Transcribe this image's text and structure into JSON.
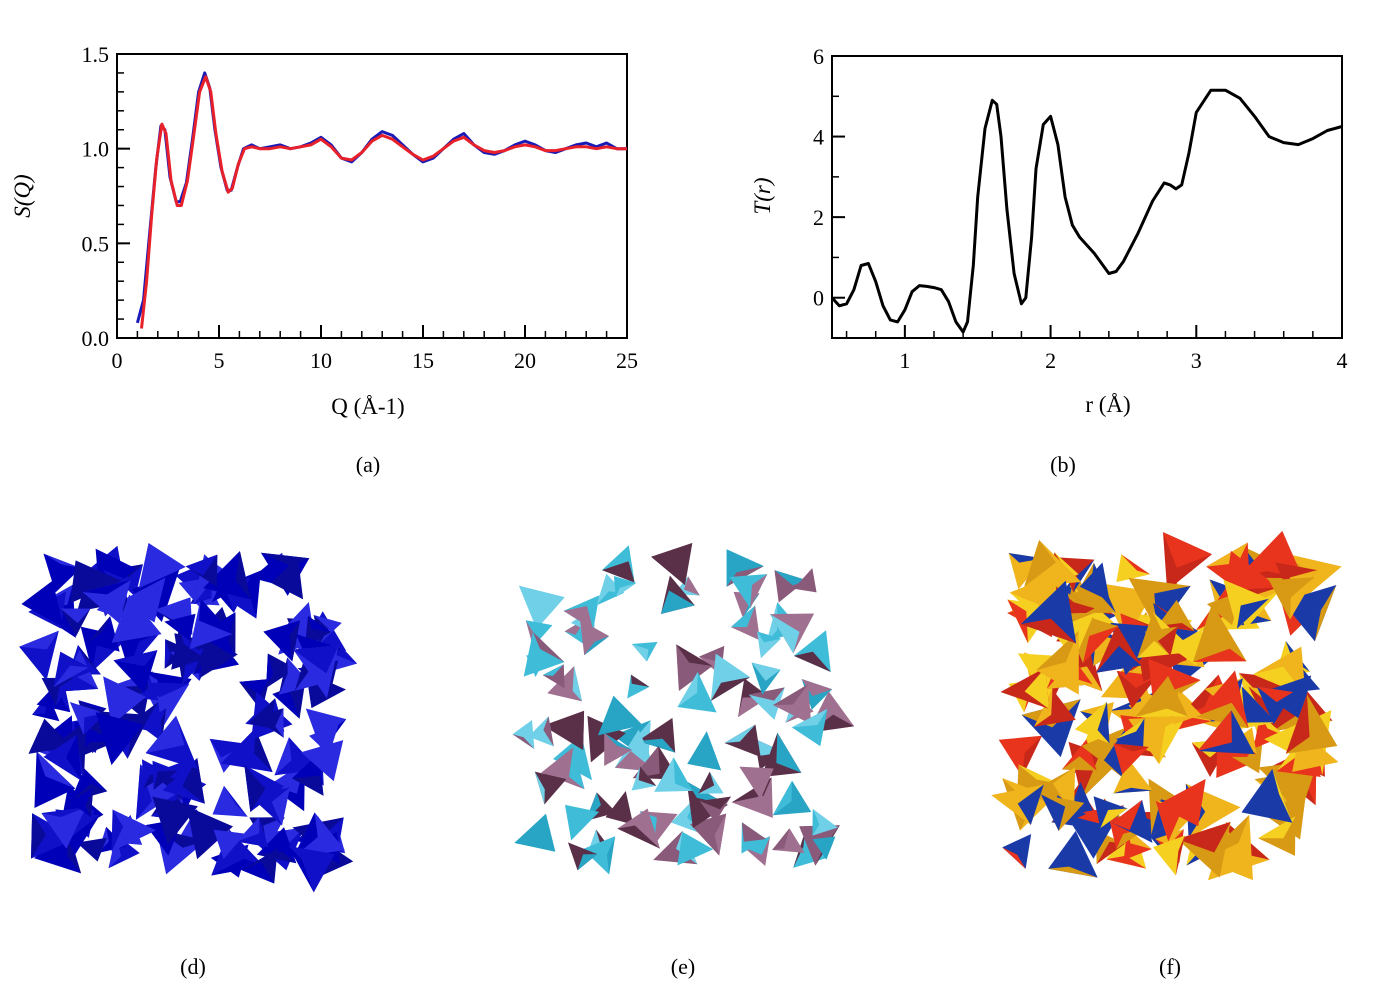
{
  "chart_data": [
    {
      "type": "line",
      "panel": "(a)",
      "xlabel": "Q (Å-1)",
      "ylabel": "S(Q)",
      "xlim": [
        0,
        25
      ],
      "ylim": [
        0.0,
        1.5
      ],
      "xticks": [
        "0",
        "5",
        "10",
        "15",
        "20",
        "25"
      ],
      "yticks": [
        "0.0",
        "0.5",
        "1.0",
        "1.5"
      ],
      "grid": false,
      "series": [
        {
          "color": "#1a1ab4",
          "x": [
            1.0,
            1.3,
            1.6,
            1.9,
            2.15,
            2.35,
            2.6,
            2.9,
            3.1,
            3.4,
            3.7,
            4.0,
            4.3,
            4.55,
            4.8,
            5.1,
            5.4,
            5.6,
            5.9,
            6.2,
            6.6,
            7.0,
            7.5,
            8.0,
            8.5,
            9.0,
            9.5,
            10.0,
            10.5,
            11.0,
            11.5,
            12.0,
            12.5,
            13.0,
            13.5,
            14.0,
            14.5,
            15.0,
            15.5,
            16.0,
            16.5,
            17.0,
            17.5,
            18.0,
            18.5,
            19.0,
            19.5,
            20.0,
            20.5,
            21.0,
            21.5,
            22.0,
            22.5,
            23.0,
            23.5,
            24.0,
            24.5,
            25.0
          ],
          "y": [
            0.08,
            0.2,
            0.55,
            0.9,
            1.12,
            1.1,
            0.85,
            0.72,
            0.72,
            0.82,
            1.05,
            1.3,
            1.4,
            1.32,
            1.1,
            0.9,
            0.78,
            0.78,
            0.9,
            1.0,
            1.02,
            1.0,
            1.01,
            1.02,
            1.0,
            1.01,
            1.03,
            1.06,
            1.02,
            0.95,
            0.93,
            0.98,
            1.05,
            1.09,
            1.07,
            1.02,
            0.97,
            0.93,
            0.95,
            1.0,
            1.05,
            1.08,
            1.02,
            0.98,
            0.97,
            0.99,
            1.02,
            1.04,
            1.02,
            0.99,
            0.98,
            1.0,
            1.02,
            1.03,
            1.01,
            1.03,
            1.0,
            1.0
          ]
        },
        {
          "color": "#e8202a",
          "x": [
            1.2,
            1.45,
            1.7,
            1.95,
            2.2,
            2.4,
            2.65,
            2.95,
            3.15,
            3.45,
            3.75,
            4.05,
            4.35,
            4.6,
            4.85,
            5.15,
            5.45,
            5.65,
            5.95,
            6.25,
            6.6,
            7.0,
            7.5,
            8.0,
            8.5,
            9.0,
            9.5,
            10.0,
            10.5,
            11.0,
            11.5,
            12.0,
            12.5,
            13.0,
            13.5,
            14.0,
            14.5,
            15.0,
            15.5,
            16.0,
            16.5,
            17.0,
            17.5,
            18.0,
            18.5,
            19.0,
            19.5,
            20.0,
            20.5,
            21.0,
            21.5,
            22.0,
            22.5,
            23.0,
            23.5,
            24.0,
            24.5,
            25.0
          ],
          "y": [
            0.05,
            0.3,
            0.65,
            0.95,
            1.13,
            1.08,
            0.83,
            0.7,
            0.7,
            0.83,
            1.06,
            1.3,
            1.38,
            1.3,
            1.08,
            0.88,
            0.77,
            0.79,
            0.92,
            1.0,
            1.01,
            1.0,
            1.0,
            1.01,
            1.0,
            1.01,
            1.02,
            1.05,
            1.01,
            0.95,
            0.94,
            0.98,
            1.04,
            1.07,
            1.05,
            1.01,
            0.97,
            0.94,
            0.96,
            1.0,
            1.04,
            1.06,
            1.02,
            0.99,
            0.98,
            0.99,
            1.01,
            1.02,
            1.01,
            0.99,
            0.99,
            1.0,
            1.01,
            1.01,
            1.0,
            1.01,
            1.0,
            1.0
          ]
        }
      ]
    },
    {
      "type": "line",
      "panel": "(b)",
      "xlabel": "r (Å)",
      "ylabel": "T(r)",
      "xlim": [
        0.5,
        4.0
      ],
      "ylim": [
        -1.0,
        6.0
      ],
      "xticks": [
        "1",
        "2",
        "3",
        "4"
      ],
      "yticks": [
        "0",
        "2",
        "4",
        "6"
      ],
      "grid": false,
      "series": [
        {
          "color": "#000000",
          "x": [
            0.5,
            0.55,
            0.6,
            0.65,
            0.7,
            0.75,
            0.8,
            0.85,
            0.9,
            0.95,
            1.0,
            1.05,
            1.1,
            1.15,
            1.2,
            1.25,
            1.3,
            1.35,
            1.4,
            1.43,
            1.47,
            1.5,
            1.55,
            1.6,
            1.63,
            1.66,
            1.7,
            1.75,
            1.8,
            1.83,
            1.87,
            1.9,
            1.95,
            2.0,
            2.05,
            2.1,
            2.15,
            2.2,
            2.3,
            2.4,
            2.45,
            2.5,
            2.6,
            2.7,
            2.78,
            2.82,
            2.86,
            2.9,
            2.95,
            3.0,
            3.1,
            3.2,
            3.3,
            3.4,
            3.5,
            3.6,
            3.7,
            3.8,
            3.9,
            4.0
          ],
          "y": [
            0.0,
            -0.2,
            -0.15,
            0.2,
            0.8,
            0.85,
            0.4,
            -0.2,
            -0.55,
            -0.6,
            -0.3,
            0.15,
            0.3,
            0.28,
            0.25,
            0.2,
            -0.1,
            -0.6,
            -0.85,
            -0.6,
            0.8,
            2.5,
            4.2,
            4.9,
            4.8,
            4.0,
            2.2,
            0.6,
            -0.15,
            0.0,
            1.5,
            3.2,
            4.3,
            4.5,
            3.8,
            2.5,
            1.8,
            1.5,
            1.1,
            0.6,
            0.65,
            0.9,
            1.6,
            2.4,
            2.85,
            2.8,
            2.7,
            2.8,
            3.6,
            4.6,
            5.15,
            5.15,
            4.95,
            4.5,
            4.0,
            3.85,
            3.8,
            3.95,
            4.15,
            4.25
          ]
        }
      ]
    }
  ],
  "captions": {
    "a": "(a)",
    "b": "(b)",
    "d": "(d)",
    "e": "(e)",
    "f": "(f)"
  },
  "illustrations": {
    "d": {
      "colors": [
        "#1010c8",
        "#0a0a9a",
        "#2a2ae0",
        "#0000b8"
      ]
    },
    "e": {
      "colors": [
        "#3fbcd8",
        "#6fd0e8",
        "#28a4c4",
        "#8a5a7a",
        "#5a3048",
        "#a07090"
      ]
    },
    "f": {
      "colors": [
        "#e8341c",
        "#f0b41c",
        "#f6d020",
        "#c8281a",
        "#1a3aa8",
        "#d89a14"
      ]
    }
  }
}
